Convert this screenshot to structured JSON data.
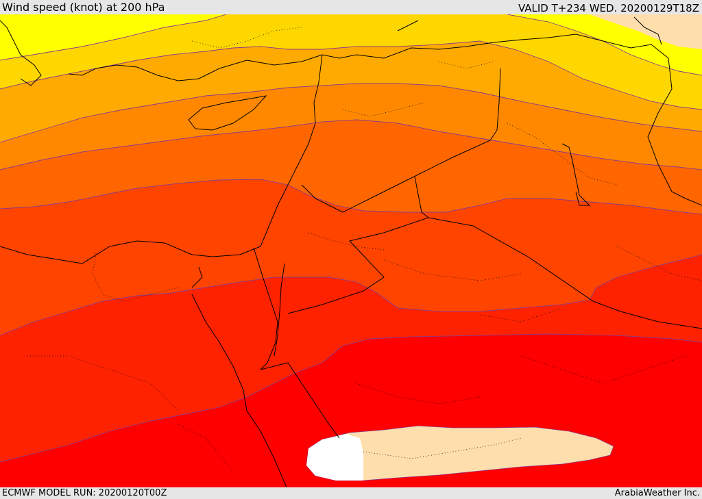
{
  "header": {
    "title": "Wind speed (knot) at 200 hPa",
    "valid": "VALID T+234 WED. 20200129T18Z"
  },
  "footer": {
    "model_run": "ECMWF MODEL RUN: 20200120T00Z",
    "credit": "ArabiaWeather Inc."
  },
  "map": {
    "field": "wind-speed",
    "colors": {
      "band_1": "#ffff00",
      "band_2": "#ffd700",
      "band_3": "#ffaa00",
      "band_4": "#ff8800",
      "band_5": "#ff6600",
      "band_6": "#ff4400",
      "band_7": "#ff2200",
      "band_8": "#ff0000",
      "low_wind_area": "#ffdead",
      "calm_area": "#ffffff",
      "contour_line": "#8b3a8b",
      "border_line": "#000000"
    }
  }
}
